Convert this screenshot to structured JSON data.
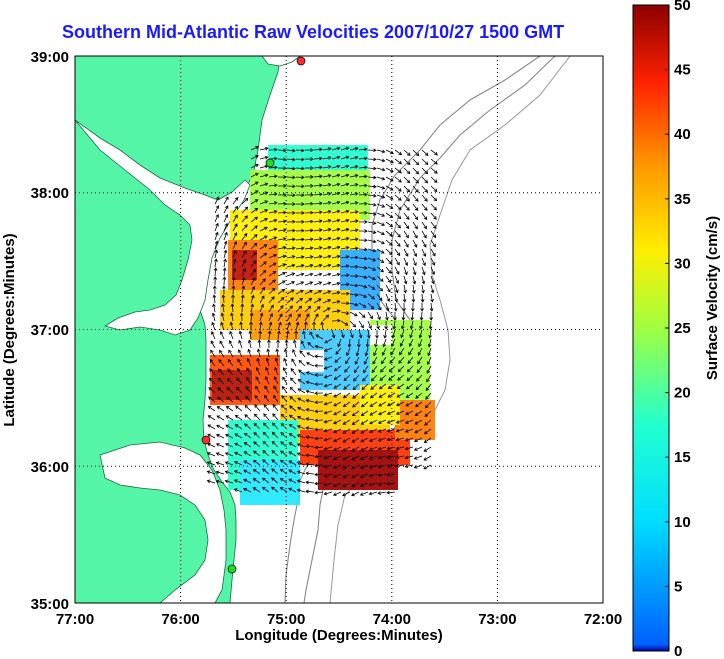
{
  "title": "Southern Mid-Atlantic Raw Velocities 2007/10/27 1500 GMT",
  "xlabel": "Longitude (Degrees:Minutes)",
  "ylabel": "Latitude (Degrees:Minutes)",
  "x_ticks": [
    "77:00",
    "76:00",
    "75:00",
    "74:00",
    "73:00",
    "72:00"
  ],
  "y_ticks": [
    "39:00",
    "38:00",
    "37:00",
    "36:00",
    "35:00"
  ],
  "colorbar": {
    "label": "Surface Velocity (cm/s)",
    "ticks": [
      "0",
      "5",
      "10",
      "15",
      "20",
      "25",
      "30",
      "35",
      "40",
      "45",
      "50"
    ],
    "range": [
      0,
      50
    ]
  },
  "map": {
    "lon_range": [
      -77,
      -72
    ],
    "lat_range": [
      35,
      39
    ],
    "grid": true,
    "land_color": "#55f5a8",
    "water_color": "#ffffff",
    "site_marker_colors": [
      "#ff2a2a",
      "#22dd22"
    ]
  }
}
